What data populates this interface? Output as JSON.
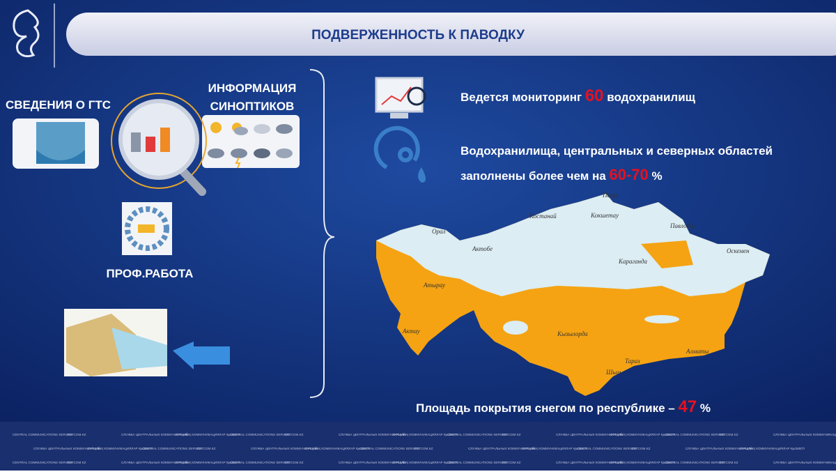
{
  "header": {
    "title": "ПОДВЕРЖЕННОСТЬ  К ПАВОДКУ"
  },
  "left": {
    "gts": "СВЕДЕНИЯ  О ГТС",
    "synoptic": [
      "ИНФОРМАЦИЯ",
      "СИНОПТИКОВ"
    ],
    "prof": "ПРОФ.РАБОТА"
  },
  "facts": [
    {
      "before": "Ведется мониторинг ",
      "number": 60,
      "after": " водохранилищ"
    },
    {
      "line1": "Водохранилища, центральных и северных областей",
      "before": "заполнены более чем на ",
      "number": "60-70",
      "after": " %"
    },
    {
      "before": "Площадь покрытия снегом по республике – ",
      "number": 47,
      "after": " %"
    }
  ],
  "map": {
    "cities": [
      "Орал",
      "Актобе",
      "Атырау",
      "Актау",
      "Костанай",
      "Кокшетау",
      "Петр",
      "Павлодар",
      "Оскемен",
      "Караганда",
      "Кызылорда",
      "Тараз",
      "Шым",
      "Алматы"
    ]
  },
  "footer": {
    "items": [
      "CENTRAL COMMUNICATIONS SERVICE",
      "ORTCOM.KZ",
      "СЛУЖБА ЦЕНТРАЛЬНЫХ КОММУНИКАЦИЙ",
      "ОРТАЛЫҚ КОММУНИКАЦИЯЛАР ҚЫЗМЕТІ"
    ]
  }
}
